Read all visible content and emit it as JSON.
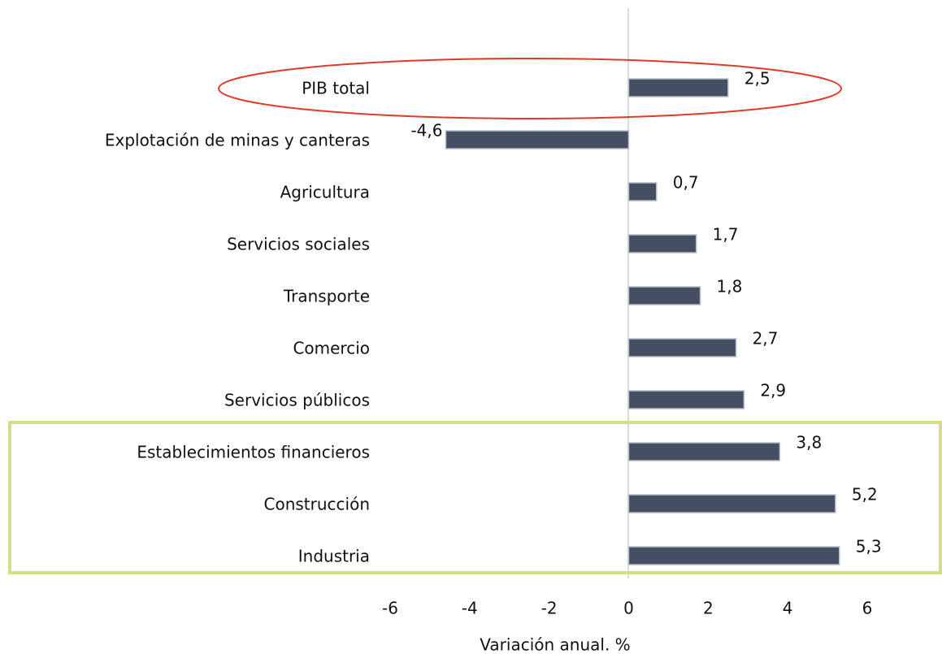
{
  "chart_data": {
    "type": "hbar",
    "categories": [
      "PIB total",
      "Explotación de minas y canteras",
      "Agricultura",
      "Servicios sociales",
      "Transporte",
      "Comercio",
      "Servicios públicos",
      "Establecimientos financieros",
      "Construcción",
      "Industria"
    ],
    "values": [
      2.5,
      -4.6,
      0.7,
      1.7,
      1.8,
      2.7,
      2.9,
      3.8,
      5.2,
      5.3
    ],
    "value_labels": [
      "2,5",
      "-4,6",
      "0,7",
      "1,7",
      "1,8",
      "2,7",
      "2,9",
      "3,8",
      "5,2",
      "5,3"
    ],
    "color": "#454e63",
    "xlim": [
      -6,
      6
    ],
    "xticks": [
      -6,
      -4,
      -2,
      0,
      2,
      4,
      6
    ],
    "x_label": "Variación anual. %"
  }
}
